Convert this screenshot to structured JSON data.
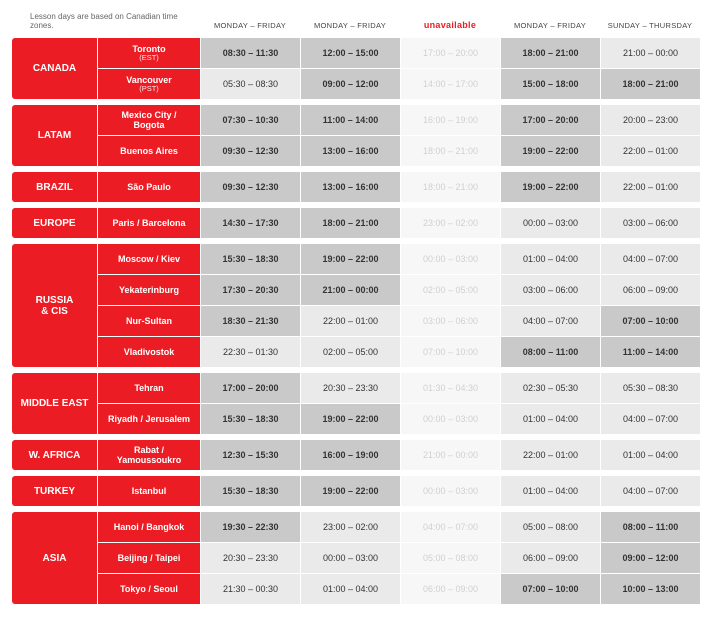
{
  "header": {
    "note": "Lesson days are based on Canadian time zones.",
    "columns": [
      "MONDAY – FRIDAY",
      "MONDAY – FRIDAY",
      "unavailable",
      "MONDAY – FRIDAY",
      "SUNDAY – THURSDAY"
    ]
  },
  "colors": {
    "brand_red": "#ec1c24",
    "cell_bold_bg": "#c9c9c9",
    "cell_normal_bg": "#eaeaea",
    "cell_unavail_bg": "#f7f7f7",
    "cell_unavail_text": "#d0d0d0"
  },
  "regions": [
    {
      "name": "CANADA",
      "cities": [
        {
          "label": "Toronto",
          "tz": "(EST)",
          "cells": [
            {
              "t": "08:30  –  11:30",
              "style": "bold"
            },
            {
              "t": "12:00  –  15:00",
              "style": "bold"
            },
            {
              "t": "17:00  –  20:00",
              "style": "unavail"
            },
            {
              "t": "18:00  –  21:00",
              "style": "bold"
            },
            {
              "t": "21:00  –  00:00",
              "style": "normal"
            }
          ]
        },
        {
          "label": "Vancouver",
          "tz": "(PST)",
          "cells": [
            {
              "t": "05:30  –  08:30",
              "style": "normal"
            },
            {
              "t": "09:00  –  12:00",
              "style": "bold"
            },
            {
              "t": "14:00  –  17:00",
              "style": "unavail"
            },
            {
              "t": "15:00  –  18:00",
              "style": "bold"
            },
            {
              "t": "18:00  –  21:00",
              "style": "bold"
            }
          ]
        }
      ]
    },
    {
      "name": "LATAM",
      "cities": [
        {
          "label": "Mexico City / Bogota",
          "cells": [
            {
              "t": "07:30  –  10:30",
              "style": "bold"
            },
            {
              "t": "11:00  –  14:00",
              "style": "bold"
            },
            {
              "t": "16:00  –  19:00",
              "style": "unavail"
            },
            {
              "t": "17:00  –  20:00",
              "style": "bold"
            },
            {
              "t": "20:00  –  23:00",
              "style": "normal"
            }
          ]
        },
        {
          "label": "Buenos Aires",
          "cells": [
            {
              "t": "09:30  –  12:30",
              "style": "bold"
            },
            {
              "t": "13:00  –  16:00",
              "style": "bold"
            },
            {
              "t": "18:00  –  21:00",
              "style": "unavail"
            },
            {
              "t": "19:00  –  22:00",
              "style": "bold"
            },
            {
              "t": "22:00  –  01:00",
              "style": "normal"
            }
          ]
        }
      ]
    },
    {
      "name": "BRAZIL",
      "cities": [
        {
          "label": "São Paulo",
          "cells": [
            {
              "t": "09:30  –  12:30",
              "style": "bold"
            },
            {
              "t": "13:00  –  16:00",
              "style": "bold"
            },
            {
              "t": "18:00  –  21:00",
              "style": "unavail"
            },
            {
              "t": "19:00  –  22:00",
              "style": "bold"
            },
            {
              "t": "22:00  –  01:00",
              "style": "normal"
            }
          ]
        }
      ]
    },
    {
      "name": "EUROPE",
      "cities": [
        {
          "label": "Paris / Barcelona",
          "cells": [
            {
              "t": "14:30  –  17:30",
              "style": "bold"
            },
            {
              "t": "18:00  –  21:00",
              "style": "bold"
            },
            {
              "t": "23:00  –  02:00",
              "style": "unavail"
            },
            {
              "t": "00:00  –  03:00",
              "style": "normal"
            },
            {
              "t": "03:00  –  06:00",
              "style": "normal"
            }
          ]
        }
      ]
    },
    {
      "name": "RUSSIA & CIS",
      "cities": [
        {
          "label": "Moscow / Kiev",
          "cells": [
            {
              "t": "15:30  –  18:30",
              "style": "bold"
            },
            {
              "t": "19:00  –  22:00",
              "style": "bold"
            },
            {
              "t": "00:00  –  03:00",
              "style": "unavail"
            },
            {
              "t": "01:00  –  04:00",
              "style": "normal"
            },
            {
              "t": "04:00  –  07:00",
              "style": "normal"
            }
          ]
        },
        {
          "label": "Yekaterinburg",
          "cells": [
            {
              "t": "17:30  –  20:30",
              "style": "bold"
            },
            {
              "t": "21:00  –  00:00",
              "style": "bold"
            },
            {
              "t": "02:00  –  05:00",
              "style": "unavail"
            },
            {
              "t": "03:00  –  06:00",
              "style": "normal"
            },
            {
              "t": "06:00  –  09:00",
              "style": "normal"
            }
          ]
        },
        {
          "label": "Nur-Sultan",
          "cells": [
            {
              "t": "18:30  –  21:30",
              "style": "bold"
            },
            {
              "t": "22:00  –  01:00",
              "style": "normal"
            },
            {
              "t": "03:00  –  06:00",
              "style": "unavail"
            },
            {
              "t": "04:00  –  07:00",
              "style": "normal"
            },
            {
              "t": "07:00  –  10:00",
              "style": "bold"
            }
          ]
        },
        {
          "label": "Vladivostok",
          "cells": [
            {
              "t": "22:30  –  01:30",
              "style": "normal"
            },
            {
              "t": "02:00  –  05:00",
              "style": "normal"
            },
            {
              "t": "07:00  –  10:00",
              "style": "unavail"
            },
            {
              "t": "08:00  –  11:00",
              "style": "bold"
            },
            {
              "t": "11:00  –  14:00",
              "style": "bold"
            }
          ]
        }
      ]
    },
    {
      "name": "MIDDLE EAST",
      "cities": [
        {
          "label": "Tehran",
          "cells": [
            {
              "t": "17:00  –  20:00",
              "style": "bold"
            },
            {
              "t": "20:30  –  23:30",
              "style": "normal"
            },
            {
              "t": "01:30  –  04:30",
              "style": "unavail"
            },
            {
              "t": "02:30  –  05:30",
              "style": "normal"
            },
            {
              "t": "05:30  –  08:30",
              "style": "normal"
            }
          ]
        },
        {
          "label": "Riyadh / Jerusalem",
          "cells": [
            {
              "t": "15:30  –  18:30",
              "style": "bold"
            },
            {
              "t": "19:00  –  22:00",
              "style": "bold"
            },
            {
              "t": "00:00  –  03:00",
              "style": "unavail"
            },
            {
              "t": "01:00  –  04:00",
              "style": "normal"
            },
            {
              "t": "04:00  –  07:00",
              "style": "normal"
            }
          ]
        }
      ]
    },
    {
      "name": "W. AFRICA",
      "cities": [
        {
          "label": "Rabat / Yamoussoukro",
          "cells": [
            {
              "t": "12:30  –  15:30",
              "style": "bold"
            },
            {
              "t": "16:00  –  19:00",
              "style": "bold"
            },
            {
              "t": "21:00  –  00:00",
              "style": "unavail"
            },
            {
              "t": "22:00  –  01:00",
              "style": "normal"
            },
            {
              "t": "01:00  –  04:00",
              "style": "normal"
            }
          ]
        }
      ]
    },
    {
      "name": "TURKEY",
      "cities": [
        {
          "label": "Istanbul",
          "cells": [
            {
              "t": "15:30  –  18:30",
              "style": "bold"
            },
            {
              "t": "19:00  –  22:00",
              "style": "bold"
            },
            {
              "t": "00:00  –  03:00",
              "style": "unavail"
            },
            {
              "t": "01:00  –  04:00",
              "style": "normal"
            },
            {
              "t": "04:00  –  07:00",
              "style": "normal"
            }
          ]
        }
      ]
    },
    {
      "name": "ASIA",
      "cities": [
        {
          "label": "Hanoi / Bangkok",
          "cells": [
            {
              "t": "19:30  –  22:30",
              "style": "bold"
            },
            {
              "t": "23:00  –  02:00",
              "style": "normal"
            },
            {
              "t": "04:00  –  07:00",
              "style": "unavail"
            },
            {
              "t": "05:00  –  08:00",
              "style": "normal"
            },
            {
              "t": "08:00  –  11:00",
              "style": "bold"
            }
          ]
        },
        {
          "label": "Beijing / Taipei",
          "cells": [
            {
              "t": "20:30  –  23:30",
              "style": "normal"
            },
            {
              "t": "00:00  –  03:00",
              "style": "normal"
            },
            {
              "t": "05:00  –  08:00",
              "style": "unavail"
            },
            {
              "t": "06:00  –  09:00",
              "style": "normal"
            },
            {
              "t": "09:00  –  12:00",
              "style": "bold"
            }
          ]
        },
        {
          "label": "Tokyo / Seoul",
          "cells": [
            {
              "t": "21:30  –  00:30",
              "style": "normal"
            },
            {
              "t": "01:00  –  04:00",
              "style": "normal"
            },
            {
              "t": "06:00  –  09:00",
              "style": "unavail"
            },
            {
              "t": "07:00  –  10:00",
              "style": "bold"
            },
            {
              "t": "10:00  –  13:00",
              "style": "bold"
            }
          ]
        }
      ]
    }
  ]
}
